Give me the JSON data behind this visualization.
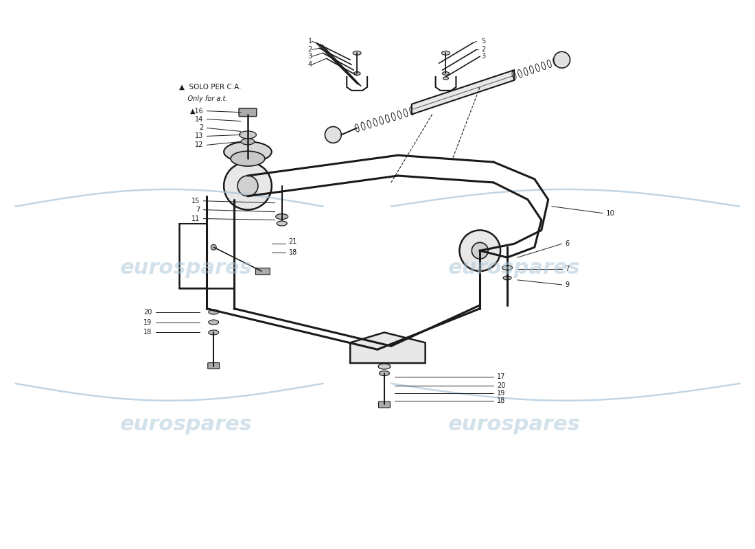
{
  "background_color": "#ffffff",
  "line_color": "#1a1a1a",
  "label_color": "#1a1a1a",
  "watermark_color": "#a8c4d8",
  "watermark_text": "eurospares",
  "note_line1": "▲  SOLO PER C.A.",
  "note_line2": "    Only for a.t."
}
